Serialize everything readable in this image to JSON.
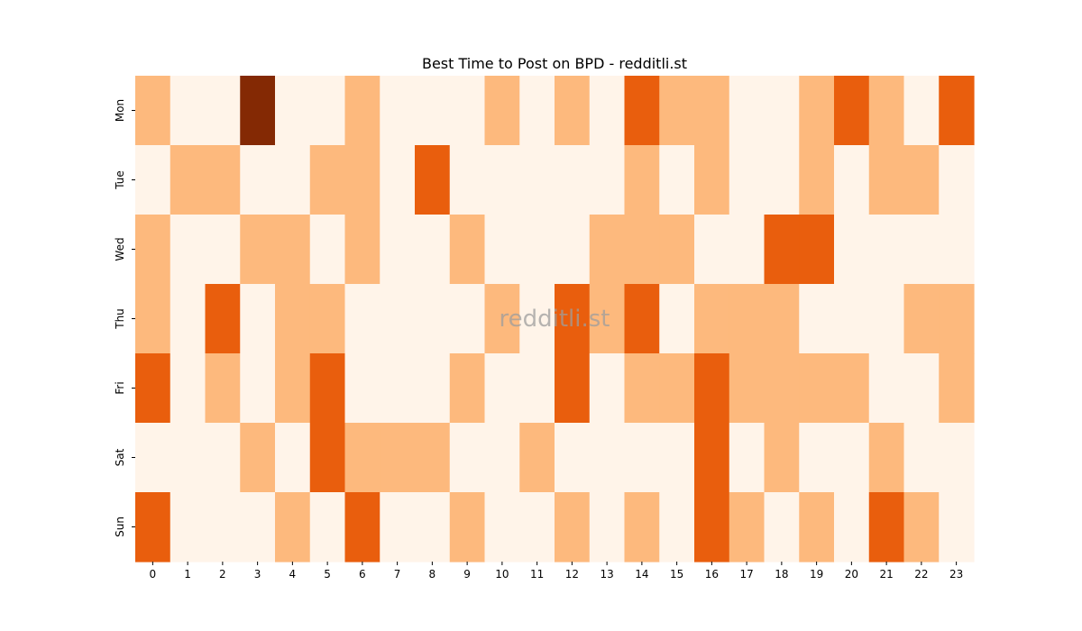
{
  "chart_data": {
    "type": "heatmap",
    "title": "Best Time to Post on BPD - redditli.st",
    "xlabel": "",
    "ylabel": "",
    "x": [
      "0",
      "1",
      "2",
      "3",
      "4",
      "5",
      "6",
      "7",
      "8",
      "9",
      "10",
      "11",
      "12",
      "13",
      "14",
      "15",
      "16",
      "17",
      "18",
      "19",
      "20",
      "21",
      "22",
      "23"
    ],
    "y": [
      "Mon",
      "Tue",
      "Wed",
      "Thu",
      "Fri",
      "Sat",
      "Sun"
    ],
    "values": [
      [
        1,
        0,
        0,
        3,
        0,
        0,
        1,
        0,
        0,
        0,
        1,
        0,
        1,
        0,
        2,
        1,
        1,
        0,
        0,
        1,
        2,
        1,
        0,
        2
      ],
      [
        0,
        1,
        1,
        0,
        0,
        1,
        1,
        0,
        2,
        0,
        0,
        0,
        0,
        0,
        1,
        0,
        1,
        0,
        0,
        1,
        0,
        1,
        1,
        0
      ],
      [
        1,
        0,
        0,
        1,
        1,
        0,
        1,
        0,
        0,
        1,
        0,
        0,
        0,
        1,
        1,
        1,
        0,
        0,
        2,
        2,
        0,
        0,
        0,
        0
      ],
      [
        1,
        0,
        2,
        0,
        1,
        1,
        0,
        0,
        0,
        0,
        1,
        0,
        2,
        1,
        2,
        0,
        1,
        1,
        1,
        0,
        0,
        0,
        1,
        1
      ],
      [
        2,
        0,
        1,
        0,
        1,
        2,
        0,
        0,
        0,
        1,
        0,
        0,
        2,
        0,
        1,
        1,
        2,
        1,
        1,
        1,
        1,
        0,
        0,
        1
      ],
      [
        0,
        0,
        0,
        1,
        0,
        2,
        1,
        1,
        1,
        0,
        0,
        1,
        0,
        0,
        0,
        0,
        2,
        0,
        1,
        0,
        0,
        1,
        0,
        0
      ],
      [
        2,
        0,
        0,
        0,
        1,
        0,
        2,
        0,
        0,
        1,
        0,
        0,
        1,
        0,
        1,
        0,
        2,
        1,
        0,
        1,
        0,
        2,
        1,
        0
      ]
    ],
    "colormap": [
      "#fff4e9",
      "#fdb97d",
      "#e95e0d",
      "#842904"
    ],
    "colorbar": false,
    "grid": false,
    "watermark": "redditli.st"
  }
}
